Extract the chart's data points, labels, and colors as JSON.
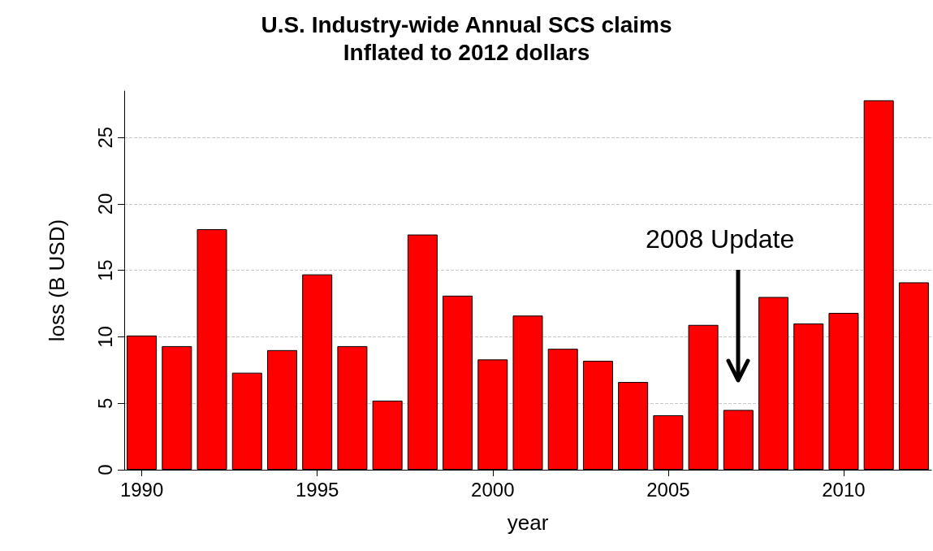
{
  "chart_data": {
    "type": "bar",
    "title": "U.S. Industry-wide Annual SCS claims\nInflated to 2012 dollars",
    "xlabel": "year",
    "ylabel": "loss (B USD)",
    "x": [
      1990,
      1991,
      1992,
      1993,
      1994,
      1995,
      1996,
      1997,
      1998,
      1999,
      2000,
      2001,
      2002,
      2003,
      2004,
      2005,
      2006,
      2007,
      2008,
      2009,
      2010,
      2011,
      2012
    ],
    "values": [
      10.1,
      9.3,
      18.1,
      7.3,
      9.0,
      14.7,
      9.3,
      5.2,
      17.7,
      13.1,
      8.3,
      11.6,
      9.1,
      8.2,
      6.6,
      4.1,
      10.9,
      4.5,
      13.0,
      11.0,
      11.8,
      27.8,
      14.1
    ],
    "color": "#ff0000",
    "xlim": [
      1989.5,
      2012.5
    ],
    "xticks": [
      1990,
      1995,
      2000,
      2005,
      2010
    ],
    "ylim": [
      0,
      28.5
    ],
    "yticks": [
      0,
      5,
      10,
      15,
      20,
      25
    ],
    "grid": "y",
    "annotations": [
      "2008 Update"
    ]
  }
}
